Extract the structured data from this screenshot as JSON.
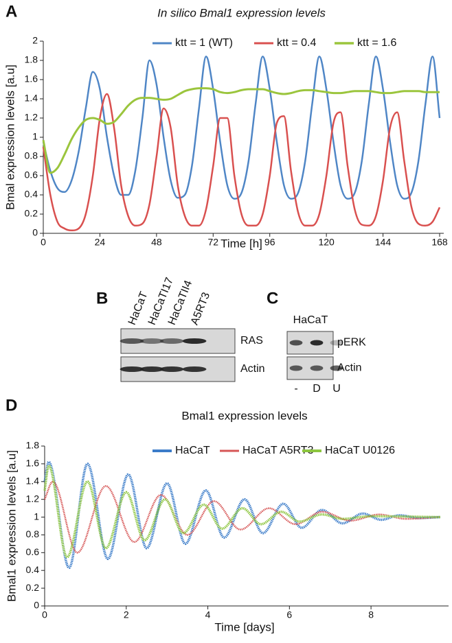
{
  "chart_data": [
    {
      "type": "line",
      "panel": "A",
      "title": "In silico Bmal1 expression levels",
      "x_label": "Time [h]",
      "y_label": "Bmal expression levels [a.u]",
      "xlim": [
        0,
        168
      ],
      "xticks": [
        0,
        24,
        48,
        72,
        96,
        120,
        144,
        168
      ],
      "ylim": [
        0,
        2
      ],
      "yticks": [
        0,
        0.2,
        0.4,
        0.6,
        0.8,
        1,
        1.2,
        1.4,
        1.6,
        1.8,
        2
      ],
      "x": [
        0,
        3,
        6,
        9,
        12,
        15,
        18,
        21,
        24,
        27,
        30,
        33,
        36,
        39,
        42,
        45,
        48,
        51,
        54,
        57,
        60,
        63,
        66,
        69,
        72,
        75,
        78,
        81,
        84,
        87,
        90,
        93,
        96,
        99,
        102,
        105,
        108,
        111,
        114,
        117,
        120,
        123,
        126,
        129,
        132,
        135,
        138,
        141,
        144,
        147,
        150,
        153,
        156,
        159,
        162,
        165,
        168
      ],
      "series": [
        {
          "name": "ktt = 1 (WT)",
          "color": "#4f86c6",
          "width": 2.5,
          "values": [
            0.95,
            0.65,
            0.47,
            0.43,
            0.55,
            0.85,
            1.3,
            1.68,
            1.5,
            1.0,
            0.6,
            0.4,
            0.4,
            0.65,
            1.2,
            1.8,
            1.55,
            1.0,
            0.55,
            0.37,
            0.4,
            0.7,
            1.3,
            1.84,
            1.5,
            0.95,
            0.5,
            0.36,
            0.42,
            0.75,
            1.35,
            1.84,
            1.5,
            0.95,
            0.5,
            0.36,
            0.42,
            0.75,
            1.35,
            1.84,
            1.5,
            0.95,
            0.5,
            0.36,
            0.42,
            0.75,
            1.35,
            1.84,
            1.5,
            0.95,
            0.5,
            0.36,
            0.42,
            0.75,
            1.35,
            1.84,
            1.2
          ]
        },
        {
          "name": "ktt = 0.4",
          "color": "#d9504f",
          "width": 2.5,
          "values": [
            0.9,
            0.4,
            0.12,
            0.05,
            0.03,
            0.05,
            0.2,
            0.6,
            1.2,
            1.45,
            1.1,
            0.5,
            0.18,
            0.08,
            0.1,
            0.3,
            0.8,
            1.3,
            1.1,
            0.5,
            0.18,
            0.08,
            0.08,
            0.25,
            0.7,
            1.2,
            1.2,
            0.6,
            0.2,
            0.08,
            0.08,
            0.2,
            0.6,
            1.15,
            1.22,
            0.65,
            0.22,
            0.08,
            0.08,
            0.2,
            0.6,
            1.15,
            1.26,
            0.7,
            0.25,
            0.09,
            0.08,
            0.18,
            0.55,
            1.1,
            1.26,
            0.75,
            0.28,
            0.1,
            0.08,
            0.12,
            0.27
          ]
        },
        {
          "name": "ktt = 1.6",
          "color": "#9bc53d",
          "width": 3,
          "values": [
            0.97,
            0.63,
            0.68,
            0.82,
            0.98,
            1.1,
            1.18,
            1.2,
            1.18,
            1.14,
            1.16,
            1.24,
            1.33,
            1.39,
            1.41,
            1.41,
            1.4,
            1.39,
            1.4,
            1.44,
            1.48,
            1.5,
            1.51,
            1.51,
            1.5,
            1.47,
            1.46,
            1.47,
            1.49,
            1.5,
            1.5,
            1.5,
            1.48,
            1.46,
            1.45,
            1.46,
            1.48,
            1.49,
            1.49,
            1.48,
            1.47,
            1.46,
            1.46,
            1.47,
            1.48,
            1.48,
            1.48,
            1.47,
            1.46,
            1.46,
            1.47,
            1.48,
            1.48,
            1.48,
            1.47,
            1.47,
            1.47
          ]
        }
      ]
    },
    {
      "type": "blot",
      "panel": "B",
      "lanes": [
        "HaCaT",
        "HaCaTI17",
        "HaCaTII4",
        "A5RT3"
      ],
      "rows": [
        "RAS",
        "Actin"
      ]
    },
    {
      "type": "blot",
      "panel": "C",
      "header": "HaCaT",
      "lanes": [
        "-",
        "D",
        "U"
      ],
      "rows": [
        "pERK",
        "Actin"
      ]
    },
    {
      "type": "line",
      "panel": "D",
      "title": "Bmal1 expression levels",
      "x_label": "Time [days]",
      "y_label": "Bmal1 expression levels [a.u]",
      "xlim": [
        0,
        9.8
      ],
      "xticks": [
        0,
        2,
        4,
        6,
        8
      ],
      "ylim": [
        0,
        1.8
      ],
      "yticks": [
        0,
        0.2,
        0.4,
        0.6,
        0.8,
        1,
        1.2,
        1.4,
        1.6,
        1.8
      ],
      "series": [
        {
          "name": "HaCaT",
          "color": "#3b7cc9",
          "width": 3.5,
          "x": [
            0,
            0.1,
            0.6,
            1.05,
            1.55,
            2.05,
            2.5,
            3.0,
            3.45,
            3.95,
            4.4,
            4.9,
            5.35,
            5.85,
            6.3,
            6.8,
            7.3,
            7.8,
            8.25,
            8.7,
            9.2,
            9.7
          ],
          "values": [
            1.4,
            1.62,
            0.43,
            1.6,
            0.53,
            1.48,
            0.65,
            1.38,
            0.7,
            1.3,
            0.77,
            1.2,
            0.82,
            1.15,
            0.88,
            1.08,
            0.93,
            1.04,
            0.97,
            1.02,
            0.99,
            1.0
          ]
        },
        {
          "name": "HaCaT A5RT3",
          "color": "#d65555",
          "width": 2.5,
          "x": [
            0,
            0.2,
            0.8,
            1.5,
            2.2,
            2.85,
            3.5,
            4.15,
            4.8,
            5.5,
            6.15,
            6.8,
            7.5,
            8.2,
            8.85,
            9.7
          ],
          "values": [
            1.2,
            1.4,
            0.6,
            1.35,
            0.72,
            1.25,
            0.8,
            1.18,
            0.86,
            1.1,
            0.92,
            1.06,
            0.96,
            1.03,
            0.98,
            1.0
          ]
        },
        {
          "name": "HaCaT U0126",
          "color": "#8dc63f",
          "width": 3.5,
          "x": [
            0,
            0.1,
            0.55,
            1.05,
            1.5,
            2.0,
            2.45,
            2.95,
            3.4,
            3.9,
            4.35,
            4.85,
            5.3,
            5.8,
            6.25,
            6.8,
            7.3,
            8.0,
            9.7
          ],
          "values": [
            1.3,
            1.58,
            0.55,
            1.4,
            0.65,
            1.28,
            0.74,
            1.2,
            0.82,
            1.14,
            0.87,
            1.1,
            0.92,
            1.06,
            0.95,
            1.03,
            0.98,
            1.01,
            1.0
          ]
        }
      ]
    }
  ]
}
